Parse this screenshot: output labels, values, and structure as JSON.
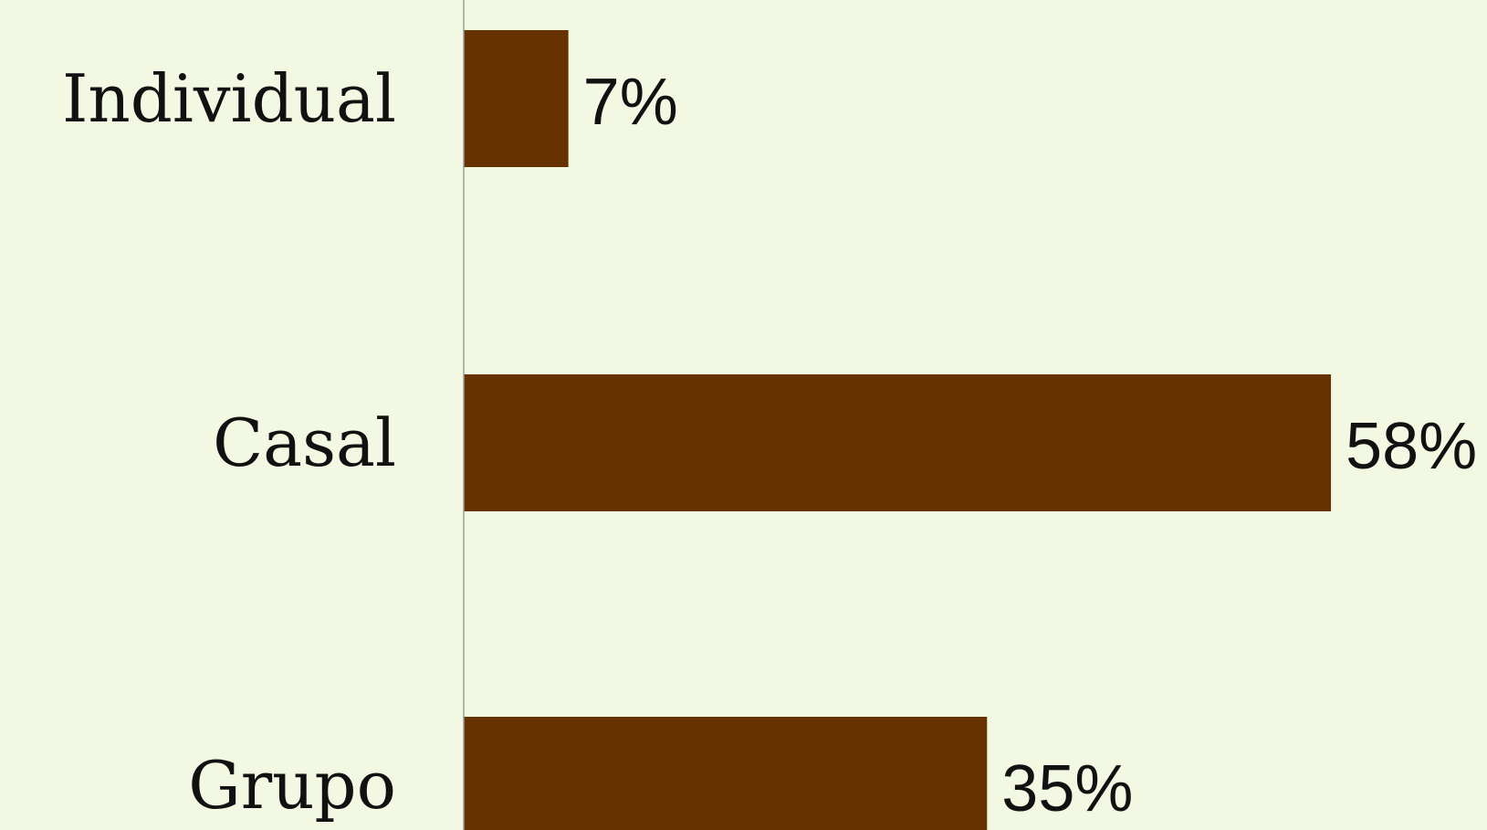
{
  "chart_data": {
    "type": "bar",
    "orientation": "horizontal",
    "categories": [
      "Individual",
      "Casal",
      "Grupo"
    ],
    "values": [
      7,
      58,
      35
    ],
    "value_labels": [
      "7%",
      "58%",
      "35%"
    ],
    "unit": "%",
    "xlim": [
      0,
      100
    ],
    "grid": false,
    "legend": "none",
    "title": "",
    "xlabel": "",
    "ylabel": ""
  },
  "colors": {
    "background": "#f2f8e1",
    "bar": "#663300",
    "axis": "#9a9a9a",
    "text": "#111111"
  }
}
